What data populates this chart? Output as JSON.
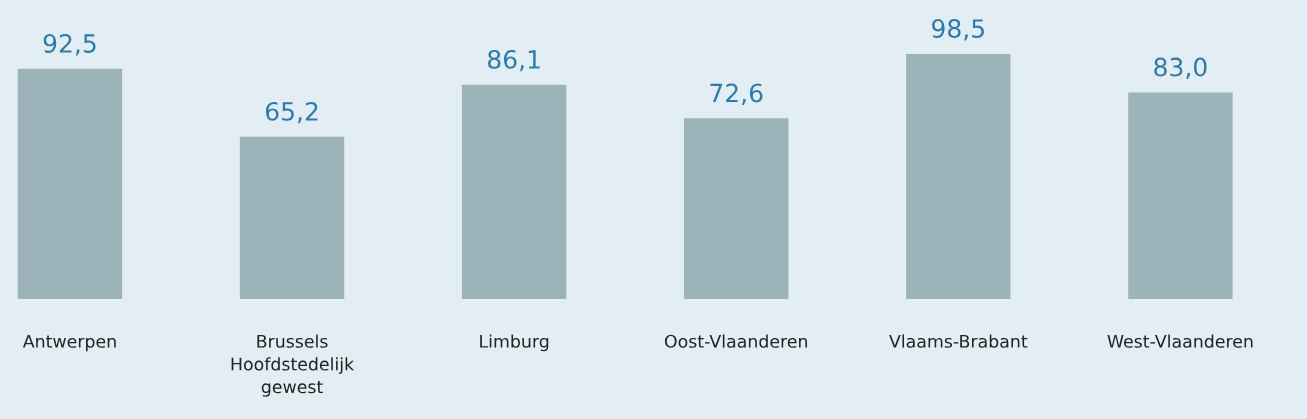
{
  "chart_data": {
    "type": "bar",
    "categories": [
      "Antwerpen",
      "Brussels\nHoofdstedelijk\ngewest",
      "Limburg",
      "Oost-Vlaanderen",
      "Vlaams-Brabant",
      "West-Vlaanderen"
    ],
    "values": [
      92.5,
      65.2,
      86.1,
      72.6,
      98.5,
      83.0
    ],
    "value_labels": [
      "92,5",
      "65,2",
      "86,1",
      "72,6",
      "98,5",
      "83,0"
    ],
    "color": "#9bb3b9",
    "grid": false,
    "legend": false
  }
}
